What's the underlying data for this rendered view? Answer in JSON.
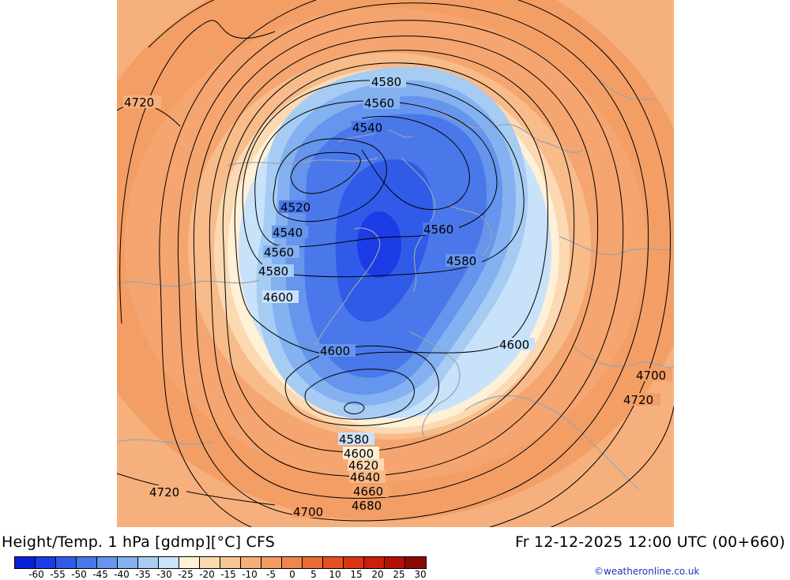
{
  "title": {
    "left": "Height/Temp. 1 hPa [gdmp][°C] CFS",
    "right": "Fr 12-12-2025 12:00 UTC (00+660)"
  },
  "credit": "©weatheronline.co.uk",
  "colorbar": {
    "colors": [
      "#0a1fd8",
      "#1b3ce6",
      "#2f5be8",
      "#4a78ea",
      "#6595ec",
      "#84b1f0",
      "#a6ccf4",
      "#c8e2fa",
      "#fff1d6",
      "#fbd9b0",
      "#f8c492",
      "#f6ae77",
      "#f39b60",
      "#f0854b",
      "#ea6a35",
      "#e4501f",
      "#da3412",
      "#cd1d0b",
      "#b50f08",
      "#8e0805"
    ],
    "labels": [
      "-60",
      "-55",
      "-50",
      "-45",
      "-40",
      "-35",
      "-30",
      "-25",
      "-20",
      "-15",
      "-10",
      "-5",
      "0",
      "5",
      "10",
      "15",
      "20",
      "25",
      "30"
    ]
  },
  "contour_labels": [
    "4580",
    "4560",
    "4540",
    "4520",
    "4540",
    "4560",
    "4580",
    "4600",
    "4560",
    "4580",
    "4600",
    "4600",
    "4580",
    "4600",
    "4620",
    "4640",
    "4660",
    "4680",
    "4700",
    "4720",
    "4700",
    "4720",
    "4720"
  ]
}
